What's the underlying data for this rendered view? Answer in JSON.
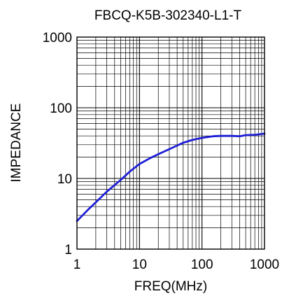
{
  "chart_data": {
    "type": "line",
    "title": "FBCQ-K5B-302340-L1-T",
    "xlabel": "FREQ(MHz)",
    "ylabel": "IMPEDANCE",
    "x_scale": "log",
    "y_scale": "log",
    "xlim": [
      1,
      1000
    ],
    "ylim": [
      1,
      1000
    ],
    "x_ticks": [
      "1",
      "10",
      "100",
      "1000"
    ],
    "y_ticks": [
      "1",
      "10",
      "100",
      "1000"
    ],
    "grid": true,
    "series": [
      {
        "color": "#1f1fd6",
        "x": [
          1,
          1.5,
          2,
          3,
          5,
          7,
          10,
          15,
          20,
          30,
          50,
          70,
          100,
          150,
          200,
          300,
          400,
          500,
          700,
          1000
        ],
        "y": [
          2.5,
          3.6,
          4.6,
          6.5,
          9.5,
          12.5,
          16,
          19.5,
          22,
          26,
          32,
          35,
          37.5,
          39.5,
          40,
          40,
          39.5,
          41,
          41.5,
          43
        ]
      }
    ]
  }
}
